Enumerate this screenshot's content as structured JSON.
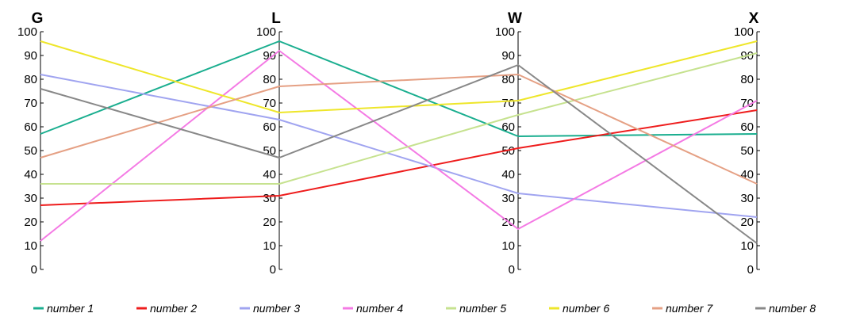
{
  "chart_data": {
    "type": "line",
    "subtype": "parallel-coordinates",
    "axes": [
      "G",
      "L",
      "W",
      "X"
    ],
    "ylim": [
      0,
      100
    ],
    "ticks": [
      "0",
      "10",
      "20",
      "30",
      "40",
      "50",
      "60",
      "70",
      "80",
      "90",
      "100"
    ],
    "grid": false,
    "legend_position": "bottom",
    "series": [
      {
        "name": "number 1",
        "color": "#1aae8f",
        "values": [
          57,
          96,
          56,
          57
        ]
      },
      {
        "name": "number 2",
        "color": "#ee1c1c",
        "values": [
          27,
          31,
          51,
          67
        ]
      },
      {
        "name": "number 3",
        "color": "#a0a4f0",
        "values": [
          82,
          63,
          32,
          22
        ]
      },
      {
        "name": "number 4",
        "color": "#f47ae4",
        "values": [
          12,
          92,
          17,
          71
        ]
      },
      {
        "name": "number 5",
        "color": "#c6e28f",
        "values": [
          36,
          36,
          65,
          91
        ]
      },
      {
        "name": "number 6",
        "color": "#eee62a",
        "values": [
          96,
          66,
          71,
          96
        ]
      },
      {
        "name": "number 7",
        "color": "#e5a084",
        "values": [
          47,
          77,
          82,
          36
        ]
      },
      {
        "name": "number 8",
        "color": "#888888",
        "values": [
          76,
          47,
          86,
          11
        ]
      }
    ]
  }
}
